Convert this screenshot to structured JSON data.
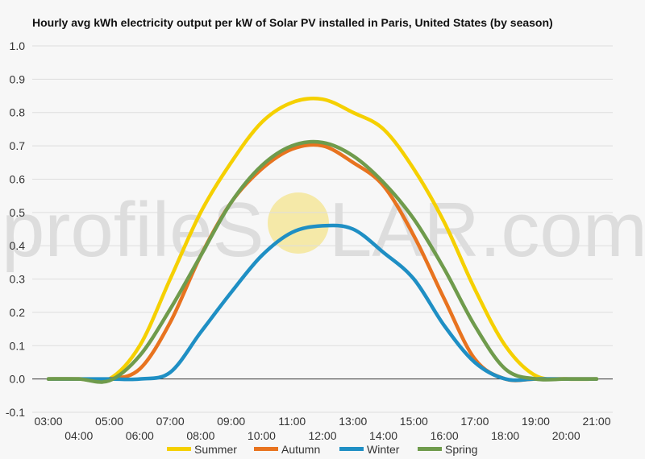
{
  "chart_data": {
    "type": "line",
    "title": "Hourly avg kWh electricity output per kW of Solar PV installed in Paris, United States (by season)",
    "xlabel": "",
    "ylabel": "",
    "ylim": [
      -0.1,
      1.0
    ],
    "yticks": [
      "1.0",
      "0.9",
      "0.8",
      "0.7",
      "0.6",
      "0.5",
      "0.4",
      "0.3",
      "0.2",
      "0.1",
      "0.0",
      "-0.1"
    ],
    "x": [
      "03:00",
      "04:00",
      "05:00",
      "06:00",
      "07:00",
      "08:00",
      "09:00",
      "10:00",
      "11:00",
      "12:00",
      "13:00",
      "14:00",
      "15:00",
      "16:00",
      "17:00",
      "18:00",
      "19:00",
      "20:00",
      "21:00"
    ],
    "grid": true,
    "legend": "bottom",
    "series": [
      {
        "name": "Summer",
        "color": "#f5d000",
        "values": [
          0.0,
          0.0,
          0.0,
          0.1,
          0.3,
          0.5,
          0.65,
          0.77,
          0.83,
          0.84,
          0.8,
          0.75,
          0.63,
          0.47,
          0.27,
          0.1,
          0.01,
          0.0,
          0.0
        ]
      },
      {
        "name": "Autumn",
        "color": "#e8731f",
        "values": [
          0.0,
          0.0,
          0.0,
          0.03,
          0.17,
          0.37,
          0.53,
          0.63,
          0.69,
          0.7,
          0.65,
          0.58,
          0.43,
          0.24,
          0.06,
          0.0,
          0.0,
          0.0,
          0.0
        ]
      },
      {
        "name": "Winter",
        "color": "#1f8fc4",
        "values": [
          0.0,
          0.0,
          0.0,
          0.0,
          0.02,
          0.14,
          0.26,
          0.37,
          0.44,
          0.46,
          0.45,
          0.38,
          0.3,
          0.16,
          0.05,
          0.0,
          0.0,
          0.0,
          0.0
        ]
      },
      {
        "name": "Spring",
        "color": "#6f9b4c",
        "values": [
          0.0,
          0.0,
          -0.005,
          0.07,
          0.21,
          0.37,
          0.53,
          0.64,
          0.7,
          0.71,
          0.67,
          0.59,
          0.48,
          0.33,
          0.16,
          0.03,
          0.0,
          0.0,
          0.0
        ]
      }
    ]
  },
  "watermark": {
    "text_left": "profileS",
    "text_right": "LAR.com",
    "sun_color": "#f5e9a8"
  }
}
